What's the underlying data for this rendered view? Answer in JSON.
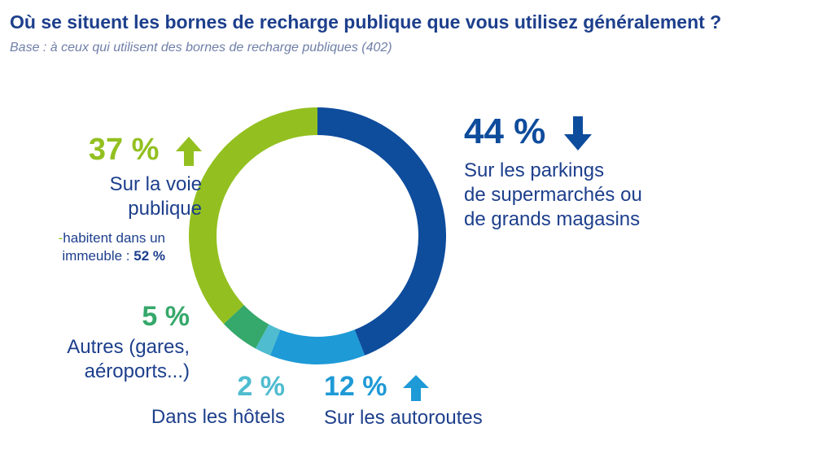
{
  "header": {
    "title": "Où se situent les bornes de recharge publique que vous utilisez généralement ?",
    "subtitle": "Base : à ceux qui utilisent des bornes de recharge publiques (402)"
  },
  "colors": {
    "title": "#1d3f8c",
    "subtitle": "#6f7fa8",
    "parkings": "#0e4c9c",
    "autoroutes": "#1e9ad6",
    "hotels": "#4fbccf",
    "autres": "#35a86b",
    "voie": "#93c020"
  },
  "chart_data": {
    "type": "pie",
    "style": "donut",
    "title": "Où se situent les bornes de recharge publique que vous utilisez généralement ?",
    "subtitle": "Base : à ceux qui utilisent des bornes de recharge publiques (402)",
    "unit": "%",
    "slices": [
      {
        "key": "parkings",
        "value": 44,
        "display": "44 %",
        "label_lines": [
          "Sur les parkings",
          "de supermarchés ou",
          "de grands magasins"
        ],
        "trend": "down",
        "color": "#0e4c9c"
      },
      {
        "key": "autoroutes",
        "value": 12,
        "display": "12 %",
        "label_lines": [
          "Sur les autoroutes"
        ],
        "trend": "up",
        "color": "#1e9ad6"
      },
      {
        "key": "hotels",
        "value": 2,
        "display": "2 %",
        "label_lines": [
          "Dans les hôtels"
        ],
        "trend": "none",
        "color": "#4fbccf"
      },
      {
        "key": "autres",
        "value": 5,
        "display": "5 %",
        "label_lines": [
          "Autres (gares,",
          "aéroports...)"
        ],
        "trend": "none",
        "color": "#35a86b"
      },
      {
        "key": "voie",
        "value": 37,
        "display": "37 %",
        "label_lines": [
          "Sur la voie",
          "publique"
        ],
        "trend": "up",
        "color": "#93c020"
      }
    ],
    "annotations": [
      {
        "slice": "voie",
        "prefix": "-",
        "lines": [
          "habitent dans un",
          "immeuble : "
        ],
        "value": "52 %"
      }
    ],
    "legend": "none"
  }
}
